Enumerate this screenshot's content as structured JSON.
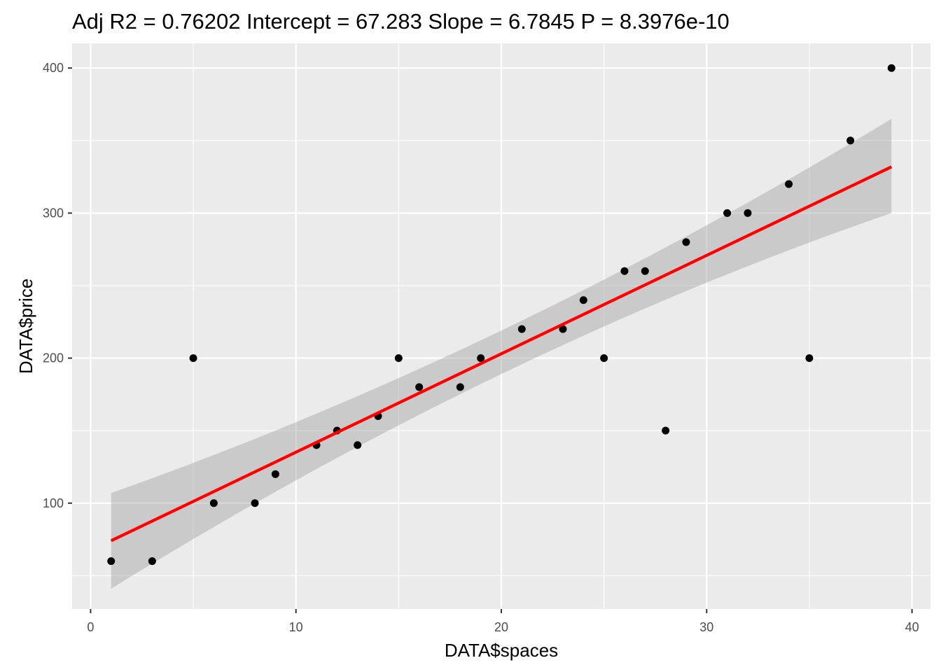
{
  "chart_data": {
    "type": "scatter",
    "title": "Adj R2 =  0.76202 Intercept = 67.283  Slope = 6.7845  P = 8.3976e-10",
    "xlabel": "DATA$spaces",
    "ylabel": "DATA$price",
    "xlim": [
      -0.9,
      40.9
    ],
    "ylim": [
      27,
      417
    ],
    "x_ticks": [
      0,
      10,
      20,
      30,
      40
    ],
    "y_ticks": [
      100,
      200,
      300,
      400
    ],
    "grid": true,
    "points": [
      {
        "x": 1,
        "y": 60
      },
      {
        "x": 3,
        "y": 60
      },
      {
        "x": 5,
        "y": 200
      },
      {
        "x": 6,
        "y": 100
      },
      {
        "x": 8,
        "y": 100
      },
      {
        "x": 9,
        "y": 120
      },
      {
        "x": 11,
        "y": 140
      },
      {
        "x": 12,
        "y": 150
      },
      {
        "x": 13,
        "y": 140
      },
      {
        "x": 14,
        "y": 160
      },
      {
        "x": 15,
        "y": 200
      },
      {
        "x": 16,
        "y": 180
      },
      {
        "x": 18,
        "y": 180
      },
      {
        "x": 19,
        "y": 200
      },
      {
        "x": 21,
        "y": 220
      },
      {
        "x": 23,
        "y": 220
      },
      {
        "x": 24,
        "y": 240
      },
      {
        "x": 25,
        "y": 200
      },
      {
        "x": 26,
        "y": 260
      },
      {
        "x": 27,
        "y": 260
      },
      {
        "x": 28,
        "y": 150
      },
      {
        "x": 29,
        "y": 280
      },
      {
        "x": 31,
        "y": 300
      },
      {
        "x": 32,
        "y": 300
      },
      {
        "x": 34,
        "y": 320
      },
      {
        "x": 35,
        "y": 200
      },
      {
        "x": 37,
        "y": 350
      },
      {
        "x": 39,
        "y": 400
      }
    ],
    "regression_line": {
      "intercept": 67.283,
      "slope": 6.7845,
      "x_range": [
        1,
        39
      ],
      "color": "#ff0000"
    },
    "confidence_band": [
      {
        "x": 1,
        "lower": 41,
        "upper": 107
      },
      {
        "x": 20,
        "lower": 189,
        "upper": 219
      },
      {
        "x": 39,
        "lower": 300,
        "upper": 365
      }
    ],
    "colors": {
      "panel": "#ebebeb",
      "grid": "#ffffff",
      "point": "#000000",
      "band": "#999999"
    }
  }
}
